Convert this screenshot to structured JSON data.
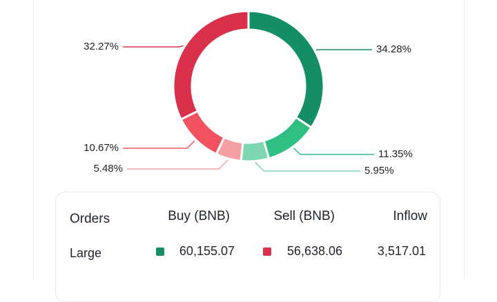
{
  "chart_data": {
    "type": "pie",
    "values": [
      34.28,
      11.35,
      5.95,
      5.48,
      10.67,
      32.27
    ],
    "value_labels": [
      "34.28%",
      "11.35%",
      "5.95%",
      "5.48%",
      "10.67%",
      "32.27%"
    ],
    "colors": [
      "#148f63",
      "#2fbf82",
      "#7dd8b1",
      "#f5a0a5",
      "#f2525f",
      "#d9314b"
    ]
  },
  "table": {
    "header": [
      "Orders",
      "Buy (BNB)",
      "Sell (BNB)",
      "Inflow"
    ],
    "rows": [
      [
        "Large",
        "60,155.07",
        "56,638.06",
        "3,517.01"
      ]
    ]
  }
}
